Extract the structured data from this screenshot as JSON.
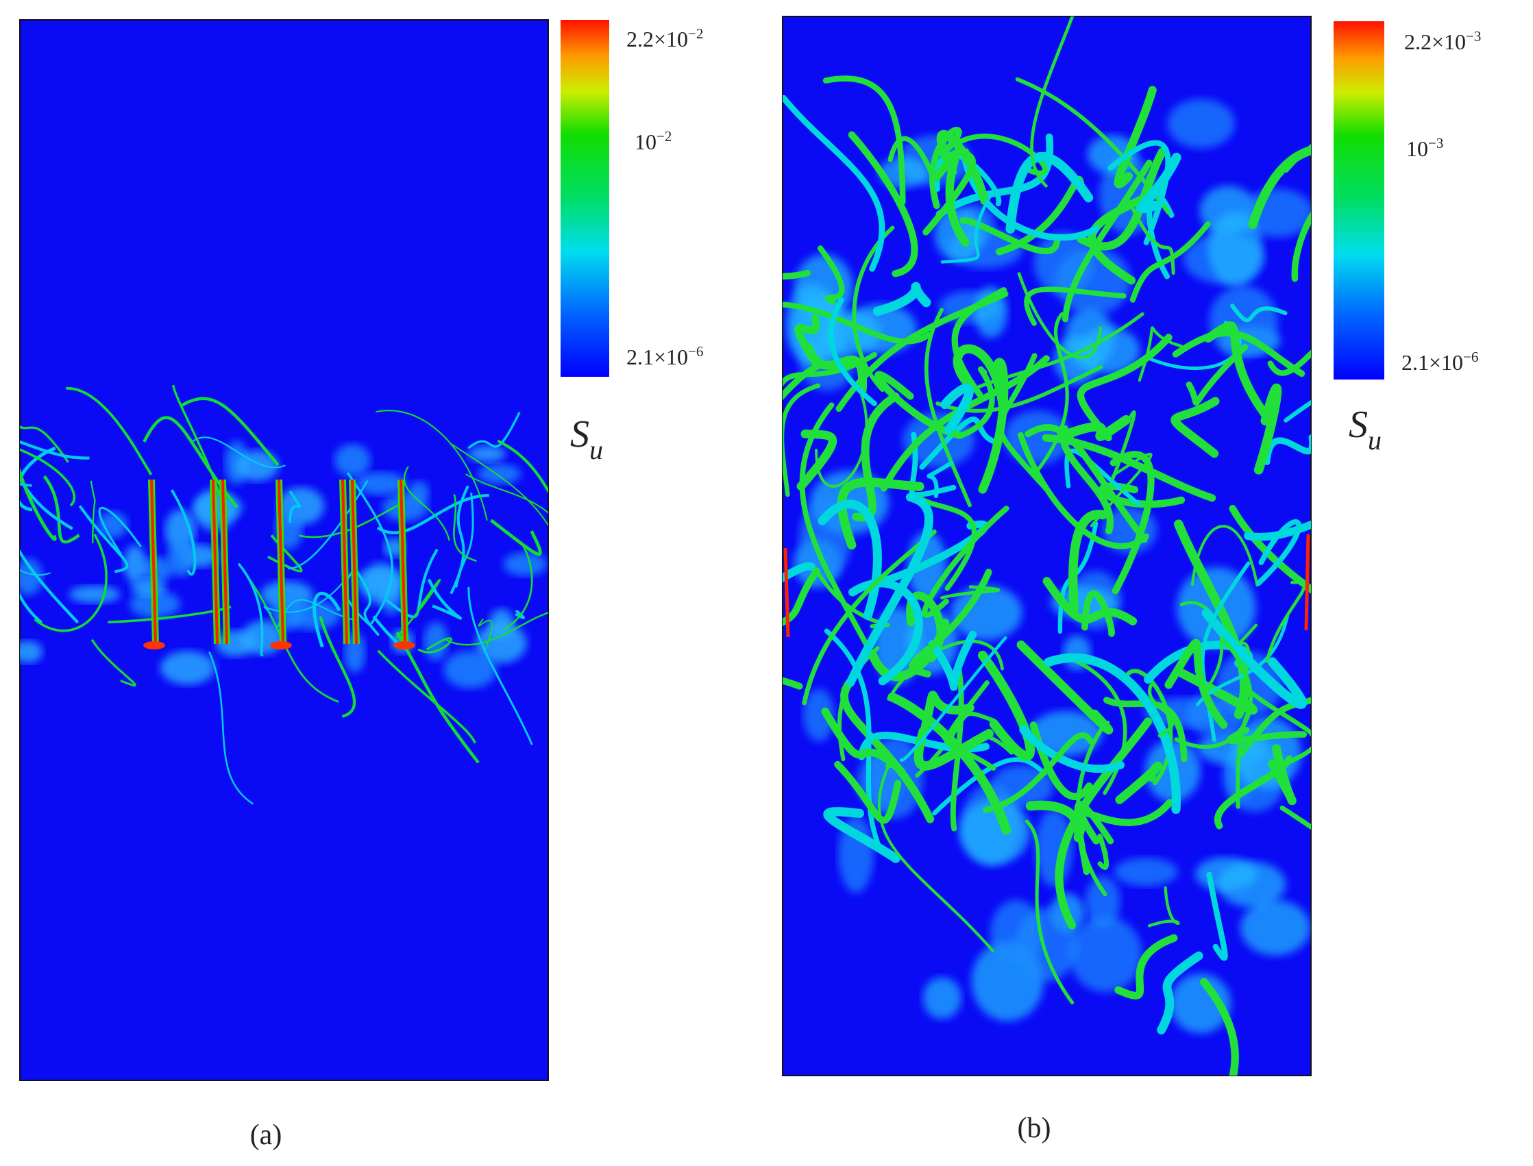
{
  "panels": [
    {
      "colorbar": {
        "labels": [
          {
            "text": "2.2×10",
            "sup": "−2"
          },
          {
            "text": "10",
            "sup": "−2"
          },
          {
            "text": "2.1×10",
            "sup": "−6"
          }
        ]
      },
      "symbol": {
        "text": "S",
        "sub": "u"
      },
      "caption": "(a)"
    },
    {
      "colorbar": {
        "labels": [
          {
            "text": "2.2×10",
            "sup": "−3"
          },
          {
            "text": "10",
            "sup": "−3"
          },
          {
            "text": "2.1×10",
            "sup": "−6"
          }
        ]
      },
      "symbol": {
        "text": "S",
        "sub": "u"
      },
      "caption": "(b)"
    }
  ]
}
